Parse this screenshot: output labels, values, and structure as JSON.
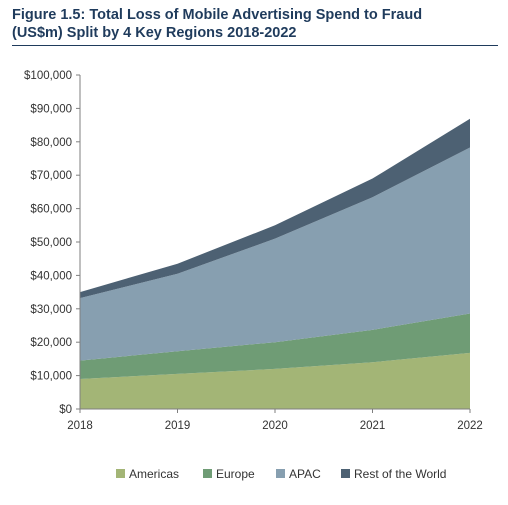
{
  "title_line1": "Figure 1.5: Total Loss of Mobile Advertising Spend to Fraud",
  "title_line2": "(US$m) Split by 4 Key Regions 2018-2022",
  "colors": {
    "Americas": "#a3b576",
    "Europe": "#6f9c75",
    "APAC": "#879fb0",
    "Rest of the World": "#4d6173",
    "title": "#1f3b5c"
  },
  "chart_data": {
    "type": "area",
    "stacked": true,
    "title": "Figure 1.5: Total Loss of Mobile Advertising Spend to Fraud (US$m) Split by 4 Key Regions 2018-2022",
    "x": [
      "2018",
      "2019",
      "2020",
      "2021",
      "2022"
    ],
    "series": [
      {
        "name": "Americas",
        "values": [
          9000,
          10500,
          12000,
          14000,
          16800
        ]
      },
      {
        "name": "Europe",
        "values": [
          5500,
          6800,
          8000,
          9700,
          11800
        ]
      },
      {
        "name": "APAC",
        "values": [
          18700,
          23200,
          31000,
          39700,
          49700
        ]
      },
      {
        "name": "Rest of the World",
        "values": [
          1800,
          3000,
          4000,
          5600,
          8600
        ]
      }
    ],
    "ylim": [
      0,
      100000
    ],
    "yticks": [
      "$0",
      "$10,000",
      "$20,000",
      "$30,000",
      "$40,000",
      "$50,000",
      "$60,000",
      "$70,000",
      "$80,000",
      "$90,000",
      "$100,000"
    ],
    "legend_position": "bottom",
    "grid": false
  }
}
